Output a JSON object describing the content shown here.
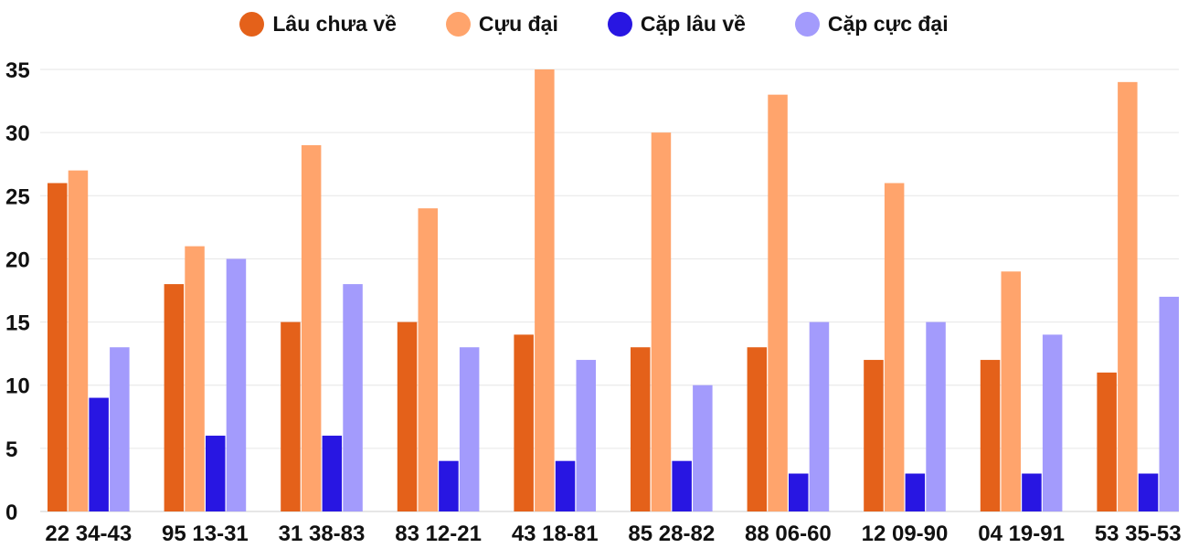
{
  "chart_data": {
    "type": "bar",
    "title": "",
    "xlabel": "",
    "ylabel": "",
    "ylim": [
      0,
      35
    ],
    "yticks": [
      0,
      5,
      10,
      15,
      20,
      25,
      30,
      35
    ],
    "grid": true,
    "legend_position": "top-center",
    "categories": [
      "22 34-43",
      "95 13-31",
      "31 38-83",
      "83 12-21",
      "43 18-81",
      "85 28-82",
      "88 06-60",
      "12 09-90",
      "04 19-91",
      "53 35-53"
    ],
    "series": [
      {
        "name": "Lâu chưa về",
        "color": "#E4611A",
        "values": [
          26,
          18,
          15,
          15,
          14,
          13,
          13,
          12,
          12,
          11
        ]
      },
      {
        "name": "Cựu đại",
        "color": "#FFA46C",
        "values": [
          27,
          21,
          29,
          24,
          35,
          30,
          33,
          26,
          19,
          34
        ]
      },
      {
        "name": "Cặp lâu về",
        "color": "#2816E2",
        "values": [
          9,
          6,
          6,
          4,
          4,
          4,
          3,
          3,
          3,
          3
        ]
      },
      {
        "name": "Cặp cực đại",
        "color": "#A39BFC",
        "values": [
          13,
          20,
          18,
          13,
          12,
          10,
          15,
          15,
          14,
          17
        ]
      }
    ]
  }
}
